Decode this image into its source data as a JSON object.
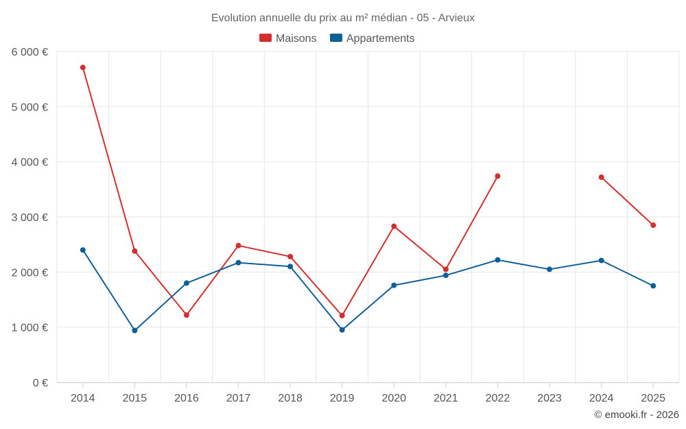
{
  "chart_data": {
    "type": "line",
    "title": "Evolution annuelle du prix au m² médian - 05 - Arvieux",
    "categories": [
      "2014",
      "2015",
      "2016",
      "2017",
      "2018",
      "2019",
      "2020",
      "2021",
      "2022",
      "2023",
      "2024",
      "2025"
    ],
    "series": [
      {
        "name": "Maisons",
        "color": "#d32f2f",
        "values": [
          5710,
          2380,
          1220,
          2480,
          2280,
          1210,
          2830,
          2050,
          3740,
          null,
          3720,
          2850
        ]
      },
      {
        "name": "Appartements",
        "color": "#0d5f96",
        "values": [
          2400,
          940,
          1800,
          2170,
          2100,
          950,
          1760,
          1940,
          2220,
          2050,
          2210,
          1750
        ]
      }
    ],
    "ylim": [
      0,
      6000
    ],
    "yticks": [
      0,
      1000,
      2000,
      3000,
      4000,
      5000,
      6000
    ],
    "ytick_labels": [
      "0 €",
      "1 000 €",
      "2 000 €",
      "3 000 €",
      "4 000 €",
      "5 000 €",
      "6 000 €"
    ],
    "xlabel": "",
    "ylabel": "",
    "grid": true,
    "legend_position": "top-center"
  },
  "credit": "© emooki.fr - 2026"
}
